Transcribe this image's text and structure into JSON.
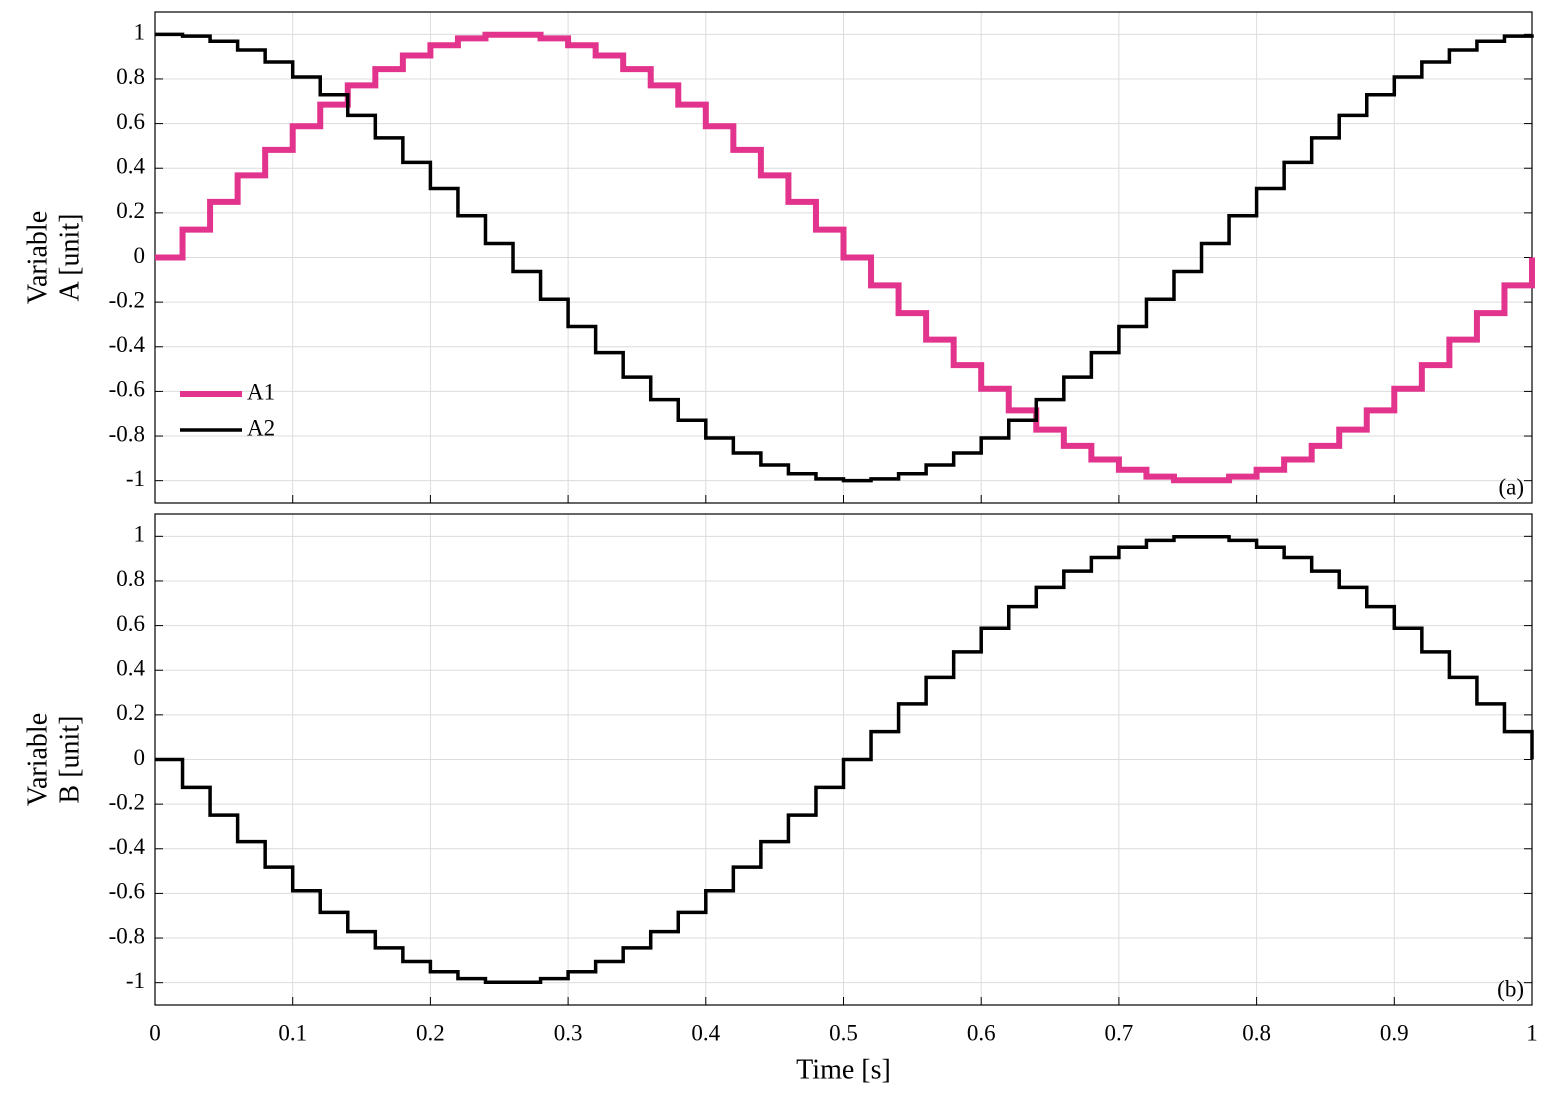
{
  "chart_data": [
    {
      "type": "line",
      "step": "post",
      "panel_label": "(a)",
      "ylabel": [
        "Variable",
        "A [unit]"
      ],
      "x": [
        0,
        0.02,
        0.04,
        0.06,
        0.08,
        0.1,
        0.12,
        0.14,
        0.16,
        0.18,
        0.2,
        0.22,
        0.24,
        0.26,
        0.28,
        0.3,
        0.32,
        0.34,
        0.36,
        0.38,
        0.4,
        0.42,
        0.44,
        0.46,
        0.48,
        0.5,
        0.52,
        0.54,
        0.56,
        0.58,
        0.6,
        0.62,
        0.64,
        0.66,
        0.68,
        0.7,
        0.72,
        0.74,
        0.76,
        0.78,
        0.8,
        0.82,
        0.84,
        0.86,
        0.88,
        0.9,
        0.92,
        0.94,
        0.96,
        0.98,
        1
      ],
      "series": [
        {
          "name": "A1",
          "color": "#e2338d",
          "width": 6,
          "values": [
            0,
            0.125,
            0.249,
            0.368,
            0.482,
            0.588,
            0.685,
            0.771,
            0.844,
            0.905,
            0.951,
            0.982,
            0.998,
            0.998,
            0.982,
            0.951,
            0.905,
            0.844,
            0.771,
            0.685,
            0.588,
            0.482,
            0.368,
            0.249,
            0.125,
            0,
            -0.125,
            -0.249,
            -0.368,
            -0.482,
            -0.588,
            -0.685,
            -0.771,
            -0.844,
            -0.905,
            -0.951,
            -0.982,
            -0.998,
            -0.998,
            -0.982,
            -0.951,
            -0.905,
            -0.844,
            -0.771,
            -0.685,
            -0.588,
            -0.482,
            -0.368,
            -0.249,
            -0.125,
            0
          ]
        },
        {
          "name": "A2",
          "color": "#000000",
          "width": 3.5,
          "values": [
            1,
            0.992,
            0.969,
            0.93,
            0.876,
            0.809,
            0.729,
            0.637,
            0.536,
            0.426,
            0.309,
            0.187,
            0.063,
            -0.063,
            -0.187,
            -0.309,
            -0.426,
            -0.536,
            -0.637,
            -0.729,
            -0.809,
            -0.876,
            -0.93,
            -0.969,
            -0.992,
            -1,
            -0.992,
            -0.969,
            -0.93,
            -0.876,
            -0.809,
            -0.729,
            -0.637,
            -0.536,
            -0.426,
            -0.309,
            -0.187,
            -0.063,
            0.063,
            0.187,
            0.309,
            0.426,
            0.536,
            0.637,
            0.729,
            0.809,
            0.876,
            0.93,
            0.969,
            0.992,
            1
          ]
        }
      ],
      "xlim": [
        0,
        1
      ],
      "xticks": [
        0,
        0.1,
        0.2,
        0.3,
        0.4,
        0.5,
        0.6,
        0.7,
        0.8,
        0.9,
        1
      ],
      "ylim": [
        -1.1,
        1.1
      ],
      "yticks": [
        -1,
        -0.8,
        -0.6,
        -0.4,
        -0.2,
        0,
        0.2,
        0.4,
        0.6,
        0.8,
        1
      ],
      "grid": true,
      "legend": "lower left"
    },
    {
      "type": "line",
      "step": "post",
      "panel_label": "(b)",
      "ylabel": [
        "Variable",
        "B [unit]"
      ],
      "xlabel": "Time [s]",
      "x": [
        0,
        0.02,
        0.04,
        0.06,
        0.08,
        0.1,
        0.12,
        0.14,
        0.16,
        0.18,
        0.2,
        0.22,
        0.24,
        0.26,
        0.28,
        0.3,
        0.32,
        0.34,
        0.36,
        0.38,
        0.4,
        0.42,
        0.44,
        0.46,
        0.48,
        0.5,
        0.52,
        0.54,
        0.56,
        0.58,
        0.6,
        0.62,
        0.64,
        0.66,
        0.68,
        0.7,
        0.72,
        0.74,
        0.76,
        0.78,
        0.8,
        0.82,
        0.84,
        0.86,
        0.88,
        0.9,
        0.92,
        0.94,
        0.96,
        0.98,
        1
      ],
      "series": [
        {
          "color": "#000000",
          "width": 3.5,
          "values": [
            0,
            -0.125,
            -0.249,
            -0.368,
            -0.482,
            -0.588,
            -0.685,
            -0.771,
            -0.844,
            -0.905,
            -0.951,
            -0.982,
            -0.998,
            -0.998,
            -0.982,
            -0.951,
            -0.905,
            -0.844,
            -0.771,
            -0.685,
            -0.588,
            -0.482,
            -0.368,
            -0.249,
            -0.125,
            0,
            0.125,
            0.249,
            0.368,
            0.482,
            0.588,
            0.685,
            0.771,
            0.844,
            0.905,
            0.951,
            0.982,
            0.998,
            0.998,
            0.982,
            0.951,
            0.905,
            0.844,
            0.771,
            0.685,
            0.588,
            0.482,
            0.368,
            0.249,
            0.125,
            0
          ]
        }
      ],
      "xlim": [
        0,
        1
      ],
      "xticks": [
        0,
        0.1,
        0.2,
        0.3,
        0.4,
        0.5,
        0.6,
        0.7,
        0.8,
        0.9,
        1
      ],
      "ylim": [
        -1.1,
        1.1
      ],
      "yticks": [
        -1,
        -0.8,
        -0.6,
        -0.4,
        -0.2,
        0,
        0.2,
        0.4,
        0.6,
        0.8,
        1
      ],
      "grid": true
    }
  ]
}
